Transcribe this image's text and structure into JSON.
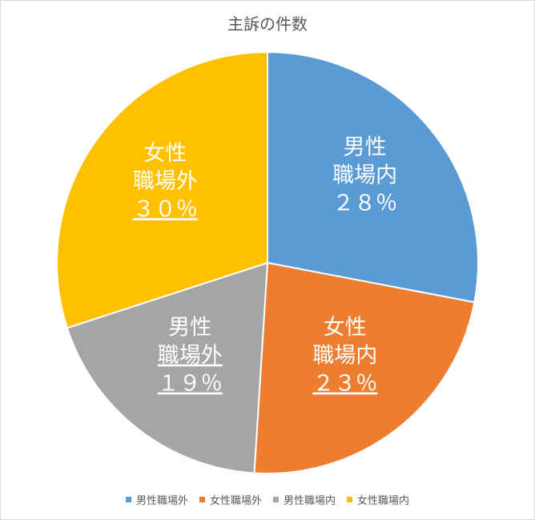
{
  "chart_data": {
    "type": "pie",
    "title": "主訴の件数",
    "categories": [
      "男性職場外",
      "女性職場外",
      "男性職場内",
      "女性職場内"
    ],
    "values": [
      19,
      30,
      28,
      23
    ],
    "colors": [
      "#5b9bd5",
      "#ed7d31",
      "#a5a5a5",
      "#ffc000"
    ],
    "slices": [
      {
        "lines": [
          "男性",
          "職場内",
          "２８％"
        ],
        "underline": [
          false,
          false,
          false
        ],
        "value": 28,
        "color": "#5b9bd5"
      },
      {
        "lines": [
          "女性",
          "職場内",
          "２３％"
        ],
        "underline": [
          false,
          false,
          true
        ],
        "value": 23,
        "color": "#ed7d31"
      },
      {
        "lines": [
          "男性",
          "職場外",
          "１９％"
        ],
        "underline": [
          false,
          true,
          true
        ],
        "value": 19,
        "color": "#a5a5a5"
      },
      {
        "lines": [
          "女性",
          "職場外",
          "３０％"
        ],
        "underline": [
          false,
          false,
          true
        ],
        "value": 30,
        "color": "#ffc000"
      }
    ],
    "legend_position": "bottom"
  }
}
